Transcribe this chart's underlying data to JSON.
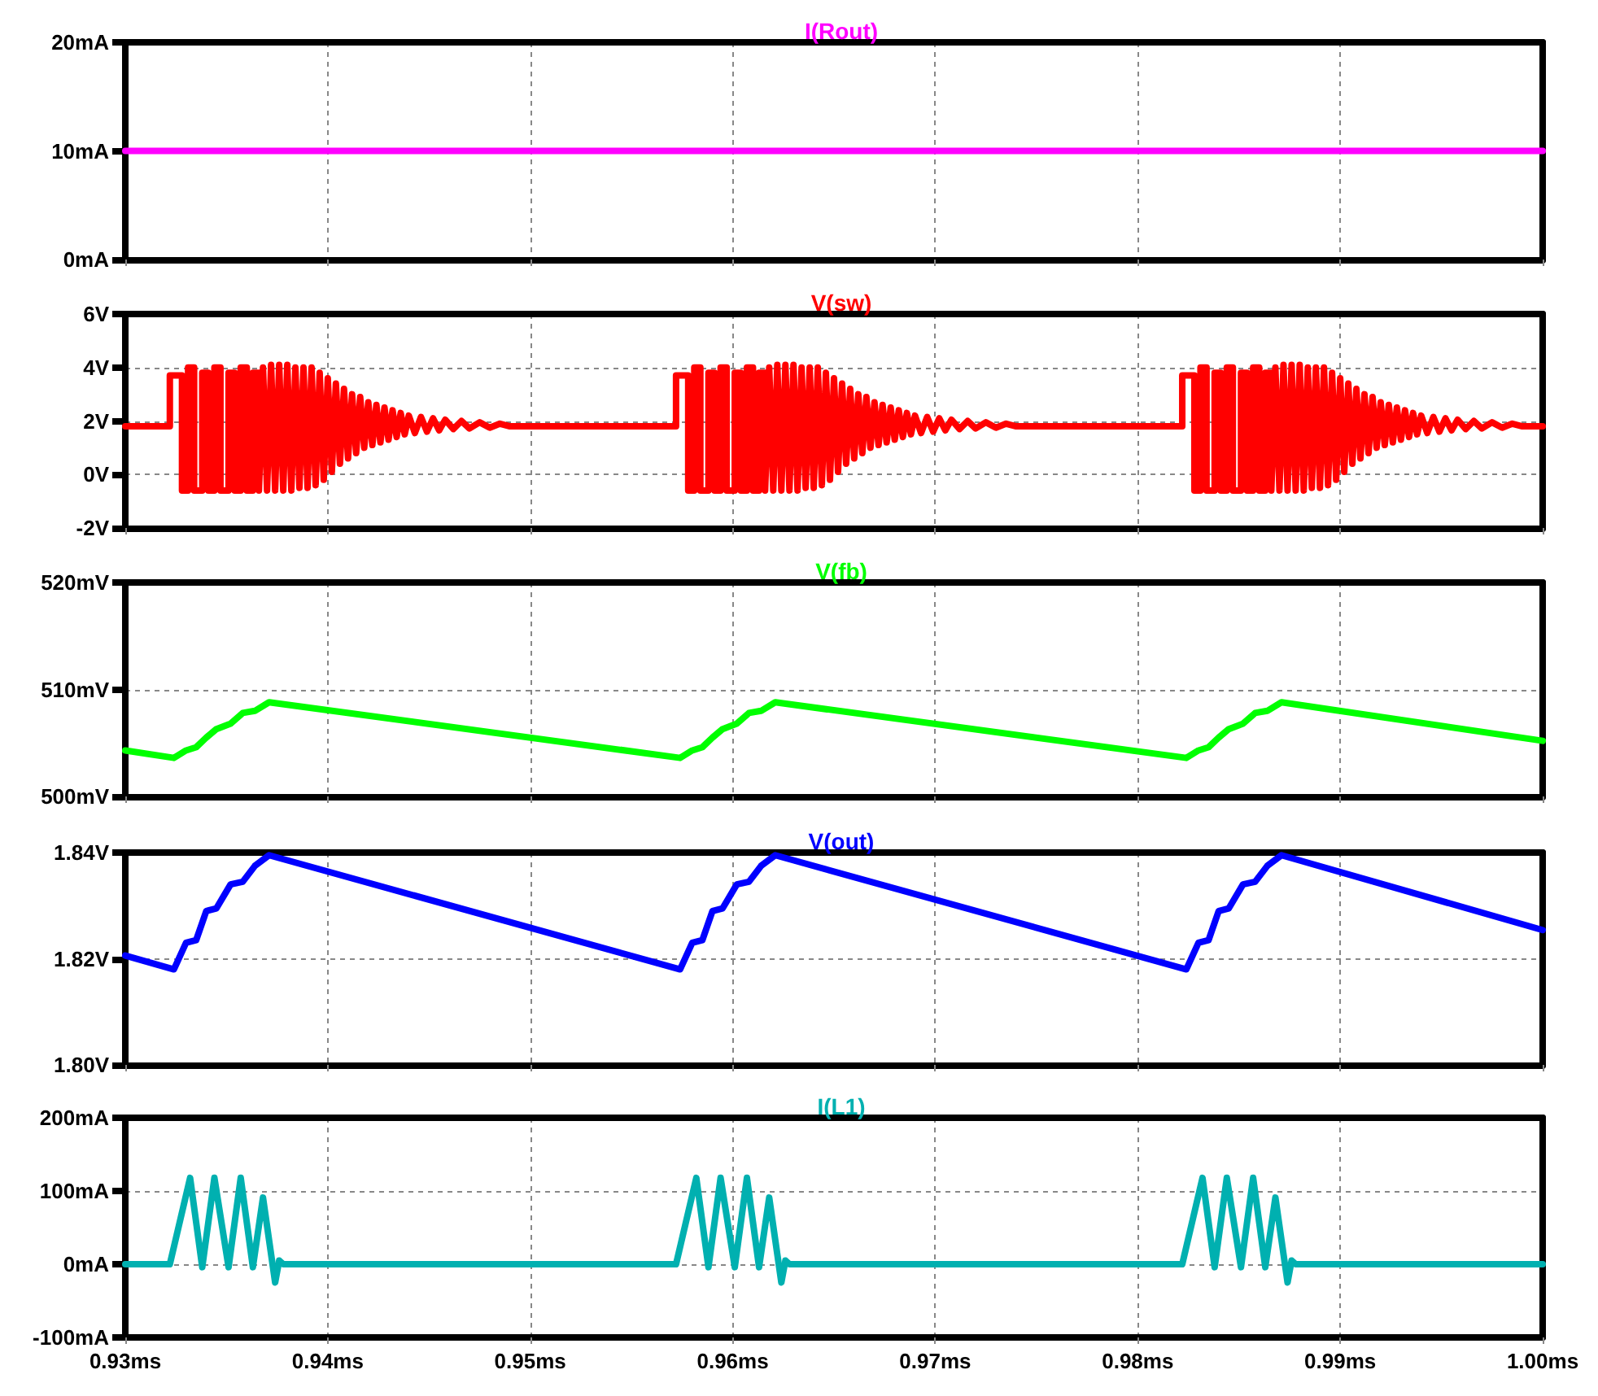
{
  "chart_data": [
    {
      "type": "line",
      "title": "I(Rout)",
      "color": "#ff00ff",
      "x": [
        0.93,
        1.0
      ],
      "values": [
        10,
        10
      ],
      "xlim": [
        0.93,
        1.0
      ],
      "xticks": [
        0.93,
        0.94,
        0.95,
        0.96,
        0.97,
        0.98,
        0.99,
        1.0
      ],
      "ylim": [
        0,
        20
      ],
      "yticks": [
        {
          "value": 0,
          "label": "0mA"
        },
        {
          "value": 10,
          "label": "10mA"
        },
        {
          "value": 20,
          "label": "20mA"
        }
      ],
      "grid": true,
      "tick_labels": "y"
    },
    {
      "type": "line",
      "title": "V(sw)",
      "color": "#ff0000",
      "x": [
        0.93,
        0.9322,
        0.9322,
        0.9328,
        0.9328,
        0.9331,
        0.9331,
        0.9334,
        0.9334,
        0.9338,
        0.9338,
        0.9341,
        0.9341,
        0.9344,
        0.9344,
        0.9347,
        0.9347,
        0.9351,
        0.9351,
        0.9354,
        0.9354,
        0.9357,
        0.9357,
        0.936,
        0.936,
        0.9363,
        0.9363,
        0.9366,
        0.9366,
        0.9368,
        0.937,
        0.9372,
        0.9374,
        0.9376,
        0.9378,
        0.938,
        0.9382,
        0.9384,
        0.9386,
        0.9388,
        0.939,
        0.9392,
        0.9394,
        0.9396,
        0.9398,
        0.94,
        0.9402,
        0.9404,
        0.9406,
        0.9408,
        0.941,
        0.9412,
        0.9414,
        0.9416,
        0.9418,
        0.942,
        0.9422,
        0.9424,
        0.9426,
        0.9428,
        0.943,
        0.9432,
        0.9434,
        0.9436,
        0.9438,
        0.944,
        0.9443,
        0.9446,
        0.9449,
        0.9452,
        0.9455,
        0.9458,
        0.9462,
        0.9466,
        0.947,
        0.9475,
        0.948,
        0.9485,
        0.949,
        0.9572,
        0.9572,
        0.9578,
        0.9578,
        0.9581,
        0.9581,
        0.9584,
        0.9584,
        0.9588,
        0.9588,
        0.9591,
        0.9591,
        0.9594,
        0.9594,
        0.9597,
        0.9597,
        0.9601,
        0.9601,
        0.9604,
        0.9604,
        0.9607,
        0.9607,
        0.961,
        0.961,
        0.9613,
        0.9613,
        0.9616,
        0.9616,
        0.9618,
        0.962,
        0.9622,
        0.9624,
        0.9626,
        0.9628,
        0.963,
        0.9632,
        0.9634,
        0.9636,
        0.9638,
        0.964,
        0.9642,
        0.9644,
        0.9646,
        0.9648,
        0.965,
        0.9652,
        0.9654,
        0.9656,
        0.9658,
        0.966,
        0.9662,
        0.9664,
        0.9666,
        0.9668,
        0.967,
        0.9672,
        0.9674,
        0.9676,
        0.9678,
        0.968,
        0.9682,
        0.9684,
        0.9686,
        0.9688,
        0.969,
        0.9693,
        0.9696,
        0.9699,
        0.9702,
        0.9705,
        0.9708,
        0.9712,
        0.9716,
        0.972,
        0.9725,
        0.973,
        0.9735,
        0.974,
        0.9822,
        0.9822,
        0.9828,
        0.9828,
        0.9831,
        0.9831,
        0.9834,
        0.9834,
        0.9838,
        0.9838,
        0.9841,
        0.9841,
        0.9844,
        0.9844,
        0.9847,
        0.9847,
        0.9851,
        0.9851,
        0.9854,
        0.9854,
        0.9857,
        0.9857,
        0.986,
        0.986,
        0.9863,
        0.9863,
        0.9866,
        0.9866,
        0.9868,
        0.987,
        0.9872,
        0.9874,
        0.9876,
        0.9878,
        0.988,
        0.9882,
        0.9884,
        0.9886,
        0.9888,
        0.989,
        0.9892,
        0.9894,
        0.9896,
        0.9898,
        0.99,
        0.9902,
        0.9904,
        0.9906,
        0.9908,
        0.991,
        0.9912,
        0.9914,
        0.9916,
        0.9918,
        0.992,
        0.9922,
        0.9924,
        0.9926,
        0.9928,
        0.993,
        0.9932,
        0.9934,
        0.9936,
        0.9938,
        0.994,
        0.9943,
        0.9946,
        0.9949,
        0.9952,
        0.9955,
        0.9958,
        0.9962,
        0.9966,
        0.997,
        0.9975,
        0.998,
        0.9985,
        0.999,
        1.0
      ],
      "values": [
        1.8,
        1.8,
        3.7,
        3.7,
        -0.6,
        -0.6,
        4.0,
        4.0,
        -0.6,
        -0.6,
        3.8,
        3.8,
        -0.6,
        -0.6,
        4.0,
        4.0,
        -0.6,
        -0.6,
        3.8,
        3.8,
        -0.6,
        -0.6,
        4.0,
        4.0,
        -0.6,
        -0.6,
        3.8,
        3.8,
        -0.6,
        4.0,
        -0.6,
        4.1,
        -0.6,
        4.1,
        -0.6,
        4.1,
        -0.6,
        4.0,
        -0.5,
        4.0,
        -0.5,
        4.0,
        -0.4,
        3.8,
        -0.2,
        3.6,
        0.1,
        3.4,
        0.4,
        3.2,
        0.6,
        3.0,
        0.8,
        2.9,
        1.0,
        2.7,
        1.1,
        2.6,
        1.2,
        2.5,
        1.3,
        2.4,
        1.4,
        2.3,
        1.5,
        2.2,
        1.55,
        2.15,
        1.6,
        2.1,
        1.65,
        2.05,
        1.7,
        2.0,
        1.72,
        1.95,
        1.75,
        1.9,
        1.8,
        1.8,
        3.7,
        3.7,
        -0.6,
        -0.6,
        4.0,
        4.0,
        -0.6,
        -0.6,
        3.8,
        3.8,
        -0.6,
        -0.6,
        4.0,
        4.0,
        -0.6,
        -0.6,
        3.8,
        3.8,
        -0.6,
        -0.6,
        4.0,
        4.0,
        -0.6,
        -0.6,
        3.8,
        3.8,
        -0.6,
        4.0,
        -0.6,
        4.1,
        -0.6,
        4.1,
        -0.6,
        4.1,
        -0.6,
        4.0,
        -0.5,
        4.0,
        -0.5,
        4.0,
        -0.4,
        3.8,
        -0.2,
        3.6,
        0.1,
        3.4,
        0.4,
        3.2,
        0.6,
        3.0,
        0.8,
        2.9,
        1.0,
        2.7,
        1.1,
        2.6,
        1.2,
        2.5,
        1.3,
        2.4,
        1.4,
        2.3,
        1.5,
        2.2,
        1.55,
        2.15,
        1.6,
        2.1,
        1.65,
        2.05,
        1.7,
        2.0,
        1.72,
        1.95,
        1.75,
        1.9,
        1.8,
        1.8,
        3.7,
        3.7,
        -0.6,
        -0.6,
        4.0,
        4.0,
        -0.6,
        -0.6,
        3.8,
        3.8,
        -0.6,
        -0.6,
        4.0,
        4.0,
        -0.6,
        -0.6,
        3.8,
        3.8,
        -0.6,
        -0.6,
        4.0,
        4.0,
        -0.6,
        -0.6,
        3.8,
        3.8,
        -0.6,
        4.0,
        -0.6,
        4.1,
        -0.6,
        4.1,
        -0.6,
        4.1,
        -0.6,
        4.0,
        -0.5,
        4.0,
        -0.5,
        4.0,
        -0.4,
        3.8,
        -0.2,
        3.6,
        0.1,
        3.4,
        0.4,
        3.2,
        0.6,
        3.0,
        0.8,
        2.9,
        1.0,
        2.7,
        1.1,
        2.6,
        1.2,
        2.5,
        1.3,
        2.4,
        1.4,
        2.3,
        1.5,
        2.2,
        1.55,
        2.15,
        1.6,
        2.1,
        1.65,
        2.05,
        1.7,
        2.0,
        1.72,
        1.95,
        1.75,
        1.9,
        1.8,
        1.8
      ],
      "xlim": [
        0.93,
        1.0
      ],
      "xticks": [
        0.93,
        0.94,
        0.95,
        0.96,
        0.97,
        0.98,
        0.99,
        1.0
      ],
      "ylim": [
        -2,
        6
      ],
      "yticks": [
        {
          "value": -2,
          "label": "-2V"
        },
        {
          "value": 0,
          "label": "0V"
        },
        {
          "value": 2,
          "label": "2V"
        },
        {
          "value": 4,
          "label": "4V"
        },
        {
          "value": 6,
          "label": "6V"
        }
      ],
      "grid": true,
      "tick_labels": "y"
    },
    {
      "type": "line",
      "title": "V(fb)",
      "color": "#00ff00",
      "x": [
        0.93,
        0.9324,
        0.933,
        0.9335,
        0.934,
        0.9345,
        0.9352,
        0.9358,
        0.9364,
        0.9371,
        0.9574,
        0.958,
        0.9585,
        0.959,
        0.9595,
        0.9602,
        0.9608,
        0.9614,
        0.9621,
        0.9824,
        0.983,
        0.9835,
        0.984,
        0.9845,
        0.9852,
        0.9858,
        0.9864,
        0.9871,
        1.0
      ],
      "values": [
        504.3,
        503.6,
        504.3,
        504.6,
        505.5,
        506.3,
        506.8,
        507.8,
        508.0,
        508.8,
        503.6,
        504.3,
        504.6,
        505.5,
        506.3,
        506.8,
        507.8,
        508.0,
        508.8,
        503.6,
        504.3,
        504.6,
        505.5,
        506.3,
        506.8,
        507.8,
        508.0,
        508.8,
        505.2
      ],
      "xlim": [
        0.93,
        1.0
      ],
      "xticks": [
        0.93,
        0.94,
        0.95,
        0.96,
        0.97,
        0.98,
        0.99,
        1.0
      ],
      "ylim": [
        500,
        520
      ],
      "yticks": [
        {
          "value": 500,
          "label": "500mV"
        },
        {
          "value": 510,
          "label": "510mV"
        },
        {
          "value": 520,
          "label": "520mV"
        }
      ],
      "grid": true,
      "tick_labels": "y"
    },
    {
      "type": "line",
      "title": "V(out)",
      "color": "#0000ff",
      "x": [
        0.93,
        0.9324,
        0.933,
        0.9335,
        0.934,
        0.9345,
        0.9352,
        0.9358,
        0.9364,
        0.9371,
        0.9574,
        0.958,
        0.9585,
        0.959,
        0.9595,
        0.9602,
        0.9608,
        0.9614,
        0.9621,
        0.9824,
        0.983,
        0.9835,
        0.984,
        0.9845,
        0.9852,
        0.9858,
        0.9864,
        0.9871,
        1.0
      ],
      "values": [
        1.8206,
        1.818,
        1.823,
        1.8235,
        1.829,
        1.8295,
        1.834,
        1.8345,
        1.8375,
        1.8395,
        1.818,
        1.823,
        1.8235,
        1.829,
        1.8295,
        1.834,
        1.8345,
        1.8375,
        1.8395,
        1.818,
        1.823,
        1.8235,
        1.829,
        1.8295,
        1.834,
        1.8345,
        1.8375,
        1.8395,
        1.8254
      ],
      "xlim": [
        0.93,
        1.0
      ],
      "xticks": [
        0.93,
        0.94,
        0.95,
        0.96,
        0.97,
        0.98,
        0.99,
        1.0
      ],
      "ylim": [
        1.8,
        1.84
      ],
      "yticks": [
        {
          "value": 1.8,
          "label": "1.80V"
        },
        {
          "value": 1.82,
          "label": "1.82V"
        },
        {
          "value": 1.84,
          "label": "1.84V"
        }
      ],
      "grid": true,
      "tick_labels": "y"
    },
    {
      "type": "line",
      "title": "I(L1)",
      "color": "#00b0b0",
      "x": [
        0.93,
        0.9322,
        0.9332,
        0.9338,
        0.9344,
        0.9351,
        0.9357,
        0.9363,
        0.9368,
        0.9374,
        0.9376,
        0.9378,
        0.9572,
        0.9582,
        0.9588,
        0.9594,
        0.9601,
        0.9607,
        0.9613,
        0.9618,
        0.9624,
        0.9626,
        0.9628,
        0.9822,
        0.9832,
        0.9838,
        0.9844,
        0.9851,
        0.9857,
        0.9863,
        0.9868,
        0.9874,
        0.9876,
        0.9878,
        1.0
      ],
      "values": [
        0,
        0,
        118,
        -4,
        118,
        -4,
        118,
        -4,
        91,
        -25,
        5,
        0,
        0,
        118,
        -4,
        118,
        -4,
        118,
        -4,
        91,
        -25,
        5,
        0,
        0,
        118,
        -4,
        118,
        -4,
        118,
        -4,
        91,
        -25,
        5,
        0,
        0
      ],
      "xlim": [
        0.93,
        1.0
      ],
      "xticks": [
        {
          "value": 0.93,
          "label": "0.93ms"
        },
        {
          "value": 0.94,
          "label": "0.94ms"
        },
        {
          "value": 0.95,
          "label": "0.95ms"
        },
        {
          "value": 0.96,
          "label": "0.96ms"
        },
        {
          "value": 0.97,
          "label": "0.97ms"
        },
        {
          "value": 0.98,
          "label": "0.98ms"
        },
        {
          "value": 0.99,
          "label": "0.99ms"
        },
        {
          "value": 1.0,
          "label": "1.00ms"
        }
      ],
      "ylim": [
        -100,
        200
      ],
      "yticks": [
        {
          "value": -100,
          "label": "-100mA"
        },
        {
          "value": 0,
          "label": "0mA"
        },
        {
          "value": 100,
          "label": "100mA"
        },
        {
          "value": 200,
          "label": "200mA"
        }
      ],
      "grid": true
    }
  ]
}
